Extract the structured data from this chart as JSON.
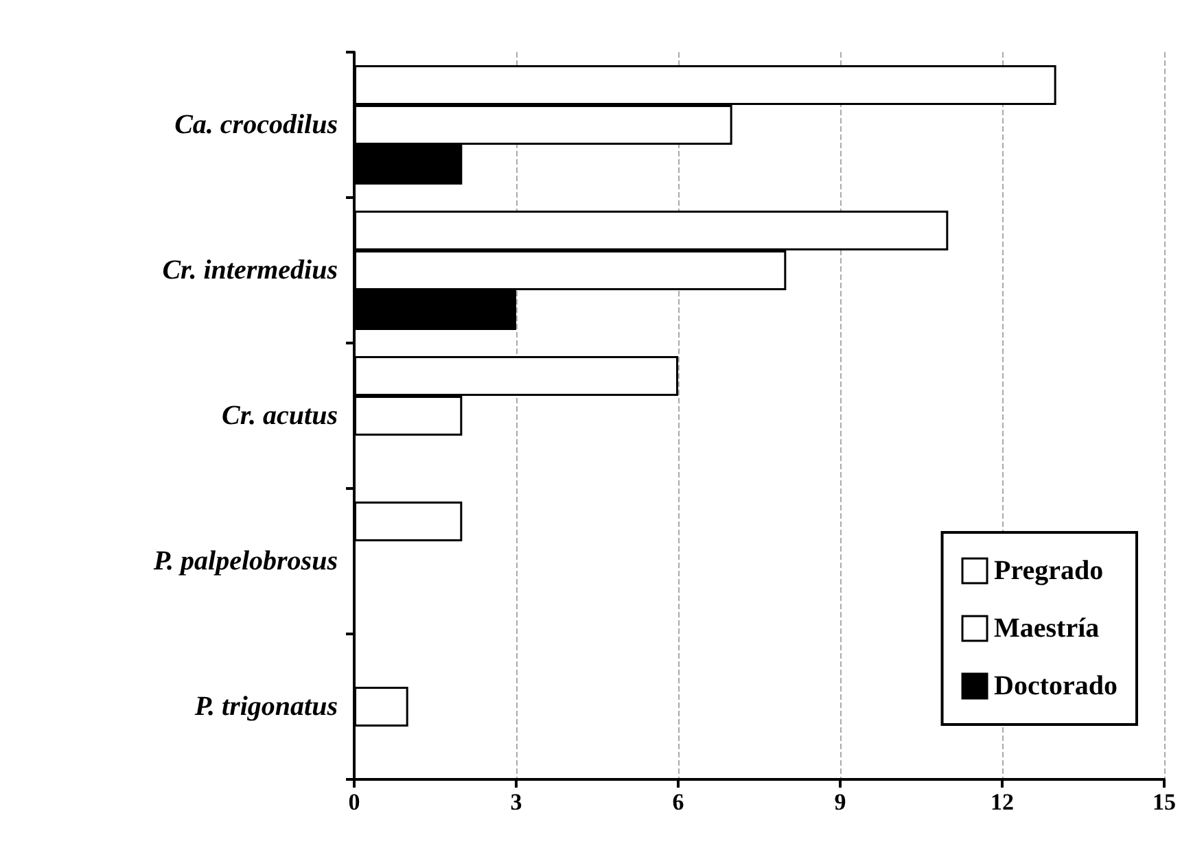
{
  "chart_data": {
    "type": "bar",
    "orientation": "horizontal",
    "categories": [
      "Ca. crocodilus",
      "Cr. intermedius",
      "Cr. acutus",
      "P. palpelobrosus",
      "P. trigonatus"
    ],
    "series": [
      {
        "name": "Pregrado",
        "color": "#ffffff",
        "values": [
          13,
          11,
          6,
          2,
          null
        ]
      },
      {
        "name": "Maestría",
        "color": "#ffffff",
        "values": [
          7,
          8,
          2,
          null,
          1
        ]
      },
      {
        "name": "Doctorado",
        "color": "#000000",
        "values": [
          2,
          3,
          null,
          null,
          null
        ]
      }
    ],
    "xlim": [
      0,
      15
    ],
    "xticks": [
      0,
      3,
      6,
      9,
      12,
      15
    ],
    "grid": "x",
    "legend": "bottom right"
  }
}
